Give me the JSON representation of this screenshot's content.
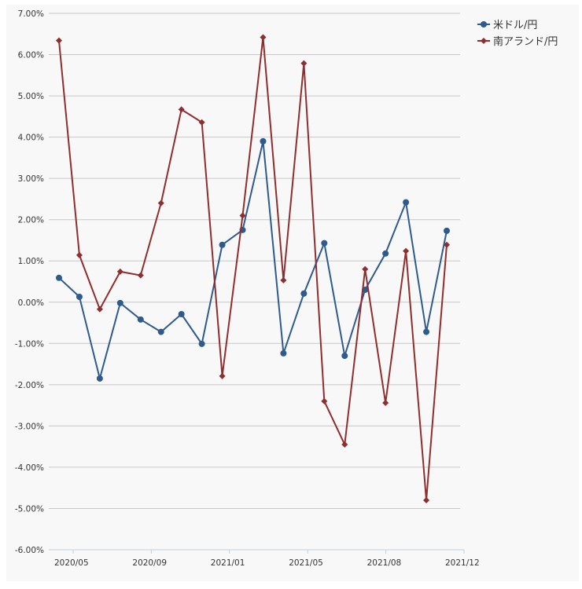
{
  "chart_data": {
    "type": "line",
    "title": "",
    "xlabel": "",
    "ylabel": "",
    "ylim": [
      -6,
      7
    ],
    "y_tick_step": 1,
    "y_tick_labels": [
      "7.00%",
      "6.00%",
      "5.00%",
      "4.00%",
      "3.00%",
      "2.00%",
      "1.00%",
      "0.00%",
      "-1.00%",
      "-2.00%",
      "-3.00%",
      "-4.00%",
      "-5.00%",
      "-6.00%"
    ],
    "x_tick_labels": [
      "2020/05",
      "2020/09",
      "2021/01",
      "2021/05",
      "2021/08",
      "2021/12"
    ],
    "grid": true,
    "legend_position": "top-right",
    "series": [
      {
        "name": "米ドル/円",
        "color": "#2e5a8e",
        "marker": "circle",
        "values": [
          0.59,
          0.13,
          -1.85,
          -0.02,
          -0.42,
          -0.72,
          -0.29,
          -1.01,
          1.39,
          1.75,
          3.9,
          -1.24,
          0.21,
          1.43,
          -1.3,
          0.3,
          1.18,
          2.42,
          -0.72,
          1.73
        ]
      },
      {
        "name": "南アランド/円",
        "color": "#8e2e2e",
        "marker": "diamond",
        "values": [
          6.34,
          1.14,
          -0.17,
          0.74,
          0.65,
          2.4,
          4.67,
          4.36,
          -1.79,
          2.1,
          6.42,
          0.53,
          5.79,
          -2.4,
          -3.45,
          0.8,
          -2.44,
          1.24,
          -4.8,
          1.39
        ]
      }
    ]
  }
}
